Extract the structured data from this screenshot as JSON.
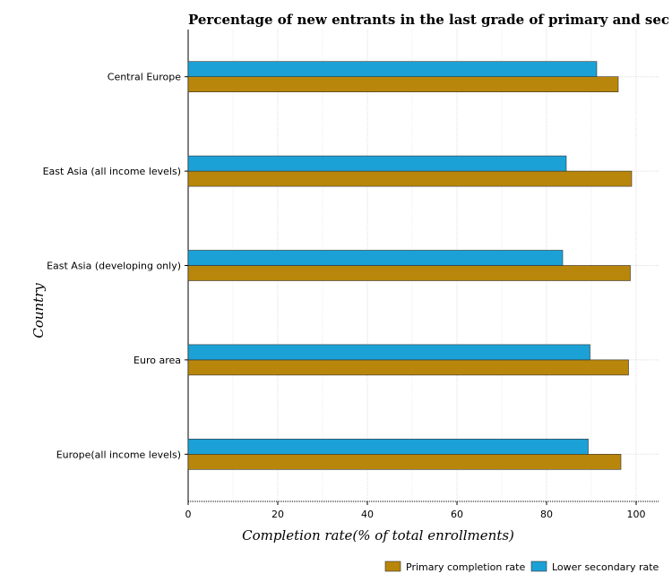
{
  "chart_data": {
    "type": "bar",
    "orientation": "horizontal",
    "title": "Percentage of new entrants in the last grade of primary  and sec",
    "xlabel": "Completion rate(% of total enrollments)",
    "ylabel": "Country",
    "xlim": [
      0,
      105
    ],
    "xticks": [
      0,
      20,
      40,
      60,
      80,
      100
    ],
    "grid": true,
    "legend_position": "bottom-right",
    "categories": [
      "Central Europe",
      "East Asia (all income levels)",
      "East Asia (developing only)",
      "Euro area",
      "Europe(all income levels)"
    ],
    "series": [
      {
        "name": "Primary completion rate",
        "color": "#b8860b",
        "values": [
          96.0,
          99.0,
          98.7,
          98.3,
          96.6
        ]
      },
      {
        "name": "Lower secondary rate",
        "color": "#1ba1d6",
        "values": [
          91.2,
          84.4,
          83.6,
          89.7,
          89.3
        ]
      }
    ]
  }
}
